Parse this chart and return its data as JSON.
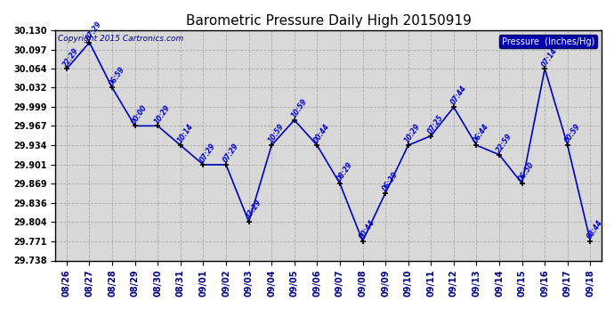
{
  "title": "Barometric Pressure Daily High 20150919",
  "copyright": "Copyright 2015 Cartronics.com",
  "legend_label": "Pressure  (Inches/Hg)",
  "dates": [
    "08/26",
    "08/27",
    "08/28",
    "08/29",
    "08/30",
    "08/31",
    "09/01",
    "09/02",
    "09/03",
    "09/04",
    "09/05",
    "09/06",
    "09/07",
    "09/08",
    "09/09",
    "09/10",
    "09/11",
    "09/12",
    "09/13",
    "09/14",
    "09/15",
    "09/16",
    "09/17",
    "09/18"
  ],
  "values": [
    30.064,
    30.109,
    30.032,
    29.967,
    29.967,
    29.934,
    29.901,
    29.901,
    29.804,
    29.934,
    29.977,
    29.934,
    29.869,
    29.771,
    29.853,
    29.934,
    29.95,
    29.999,
    29.934,
    29.918,
    29.869,
    30.064,
    29.934,
    29.771
  ],
  "time_labels": [
    "22:29",
    "07:29",
    "06:59",
    "00:00",
    "10:29",
    "10:14",
    "07:29",
    "07:29",
    "43:29",
    "10:59",
    "10:59",
    "00:44",
    "08:29",
    "00:44",
    "06:29",
    "10:29",
    "07:25",
    "07:44",
    "06:44",
    "22:59",
    "06:50",
    "07:14",
    "00:59",
    "08:44"
  ],
  "ylim_min": 29.738,
  "ylim_max": 30.13,
  "yticks": [
    29.738,
    29.771,
    29.804,
    29.836,
    29.869,
    29.901,
    29.934,
    29.967,
    29.999,
    30.032,
    30.064,
    30.097,
    30.13
  ],
  "line_color": "#0000bb",
  "marker_color": "#000000",
  "bg_color": "#ffffff",
  "plot_bg": "#d8d8d8",
  "grid_color": "#aaaaaa",
  "label_color": "#0000cc",
  "title_color": "#000000",
  "legend_bg": "#0000aa",
  "legend_fg": "#ffffff"
}
